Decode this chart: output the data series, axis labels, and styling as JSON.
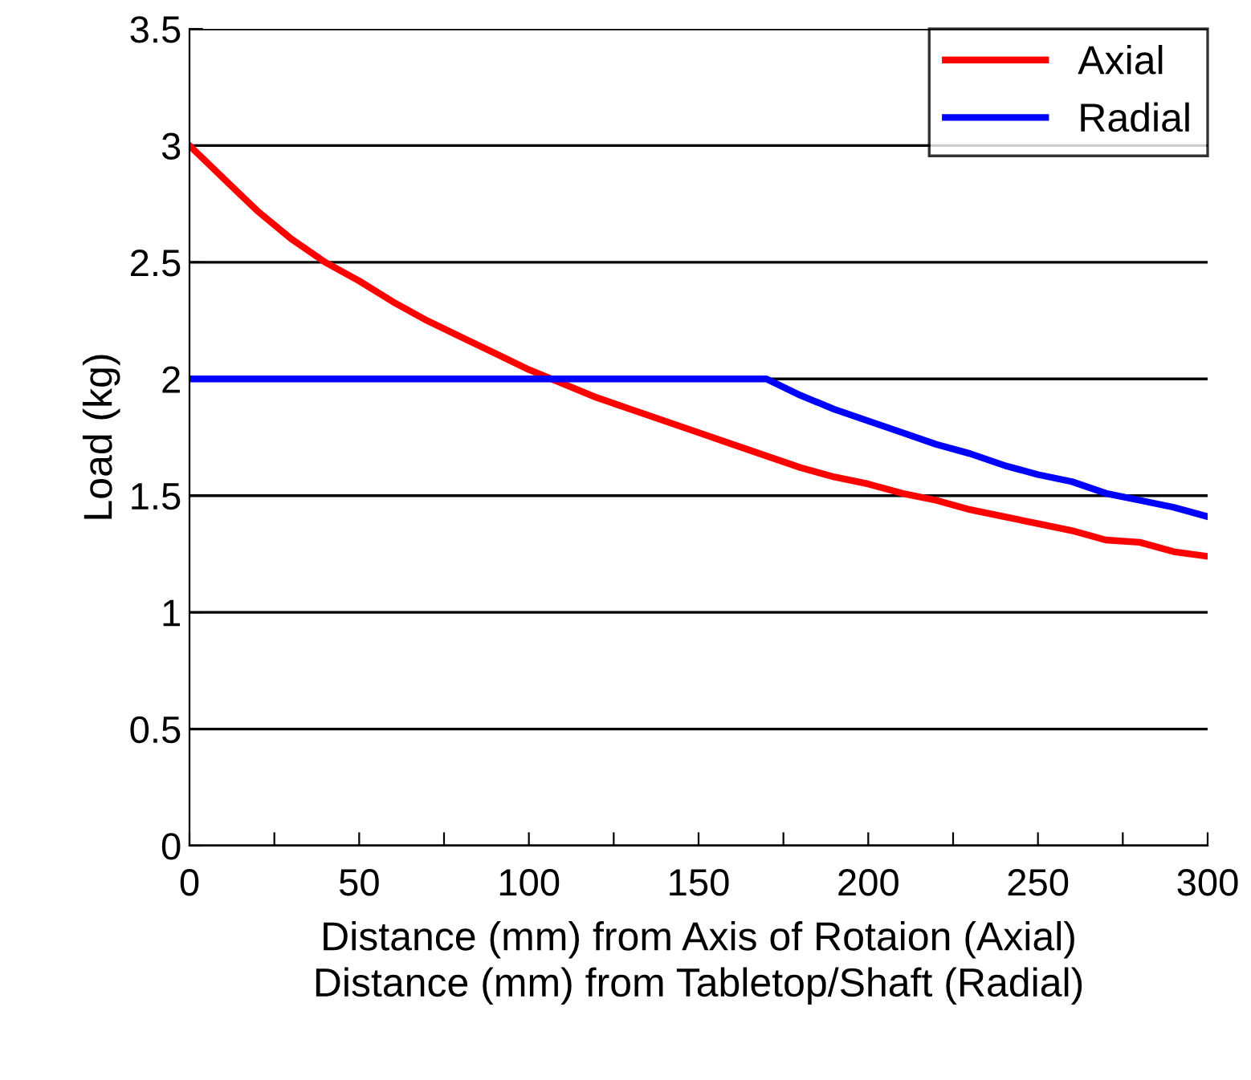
{
  "chart_data": {
    "type": "line",
    "xlabel": "Distance (mm) from Axis of Rotaion (Axial)\nDistance (mm) from Tabletop/Shaft (Radial)",
    "ylabel": "Load (kg)",
    "series": [
      {
        "name": "Axial",
        "color": "#ff0000",
        "x": [
          0,
          10,
          20,
          30,
          40,
          50,
          60,
          70,
          80,
          90,
          100,
          110,
          120,
          130,
          140,
          150,
          160,
          170,
          180,
          190,
          200,
          210,
          220,
          230,
          240,
          250,
          260,
          270,
          280,
          290,
          300
        ],
        "values": [
          3.0,
          2.86,
          2.72,
          2.6,
          2.5,
          2.42,
          2.33,
          2.25,
          2.18,
          2.11,
          2.04,
          1.98,
          1.92,
          1.87,
          1.82,
          1.77,
          1.72,
          1.67,
          1.62,
          1.58,
          1.55,
          1.51,
          1.48,
          1.44,
          1.41,
          1.38,
          1.35,
          1.31,
          1.3,
          1.26,
          1.24
        ]
      },
      {
        "name": "Radial",
        "color": "#0000ff",
        "x": [
          0,
          170,
          180,
          190,
          200,
          210,
          220,
          230,
          240,
          250,
          260,
          270,
          280,
          290,
          300
        ],
        "values": [
          2.0,
          2.0,
          1.93,
          1.87,
          1.82,
          1.77,
          1.72,
          1.68,
          1.63,
          1.59,
          1.56,
          1.51,
          1.48,
          1.45,
          1.41
        ]
      }
    ],
    "xlim": [
      0,
      300
    ],
    "ylim": [
      0,
      3.5
    ],
    "xticks": [
      0,
      {
        "value": 25,
        "label": null
      },
      50,
      {
        "value": 75,
        "label": null
      },
      100,
      {
        "value": 125,
        "label": null
      },
      150,
      {
        "value": 175,
        "label": null
      },
      200,
      {
        "value": 225,
        "label": null
      },
      250,
      {
        "value": 275,
        "label": null
      },
      300
    ],
    "yticks": [
      0,
      0.5,
      1,
      1.5,
      2,
      2.5,
      3,
      3.5
    ],
    "grid": "y",
    "legend": "top right",
    "marker": "none",
    "line_style": "solid"
  }
}
